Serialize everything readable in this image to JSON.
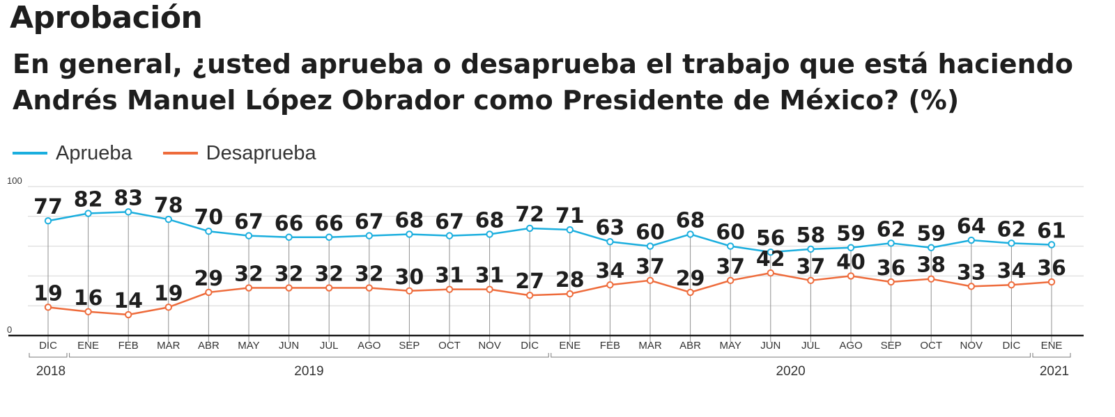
{
  "chart_data": {
    "type": "line",
    "title": "Aprobación",
    "subtitle": "En general, ¿usted aprueba o desaprueba el trabajo que está haciendo Andrés Manuel López Obrador como Presidente de México?  (%)",
    "categories": [
      "DIC",
      "ENE",
      "FEB",
      "MAR",
      "ABR",
      "MAY",
      "JUN",
      "JUL",
      "AGO",
      "SEP",
      "OCT",
      "NOV",
      "DIC",
      "ENE",
      "FEB",
      "MAR",
      "ABR",
      "MAY",
      "JUN",
      "JUL",
      "AGO",
      "SEP",
      "OCT",
      "NOV",
      "DIC",
      "ENE"
    ],
    "series": [
      {
        "name": "Aprueba",
        "color": "#1aaede",
        "values": [
          77,
          82,
          83,
          78,
          70,
          67,
          66,
          66,
          67,
          68,
          67,
          68,
          72,
          71,
          63,
          60,
          68,
          60,
          56,
          58,
          59,
          62,
          59,
          64,
          62,
          61
        ]
      },
      {
        "name": "Desaprueba",
        "color": "#ee6b3b",
        "values": [
          19,
          16,
          14,
          19,
          29,
          32,
          32,
          32,
          32,
          30,
          31,
          31,
          27,
          28,
          34,
          37,
          29,
          37,
          42,
          37,
          40,
          36,
          38,
          33,
          34,
          36
        ]
      }
    ],
    "year_groups": [
      {
        "year": "2018",
        "start": 0,
        "end": 0
      },
      {
        "year": "2019",
        "start": 1,
        "end": 12
      },
      {
        "year": "2020",
        "start": 13,
        "end": 24
      },
      {
        "year": "2021",
        "start": 25,
        "end": 25
      }
    ],
    "ylim": [
      0,
      100
    ],
    "yticks": [
      "0",
      "100"
    ],
    "gridlines": [
      20,
      40,
      60,
      80,
      100
    ],
    "legend": "top-left",
    "xlabel": "",
    "ylabel": ""
  }
}
